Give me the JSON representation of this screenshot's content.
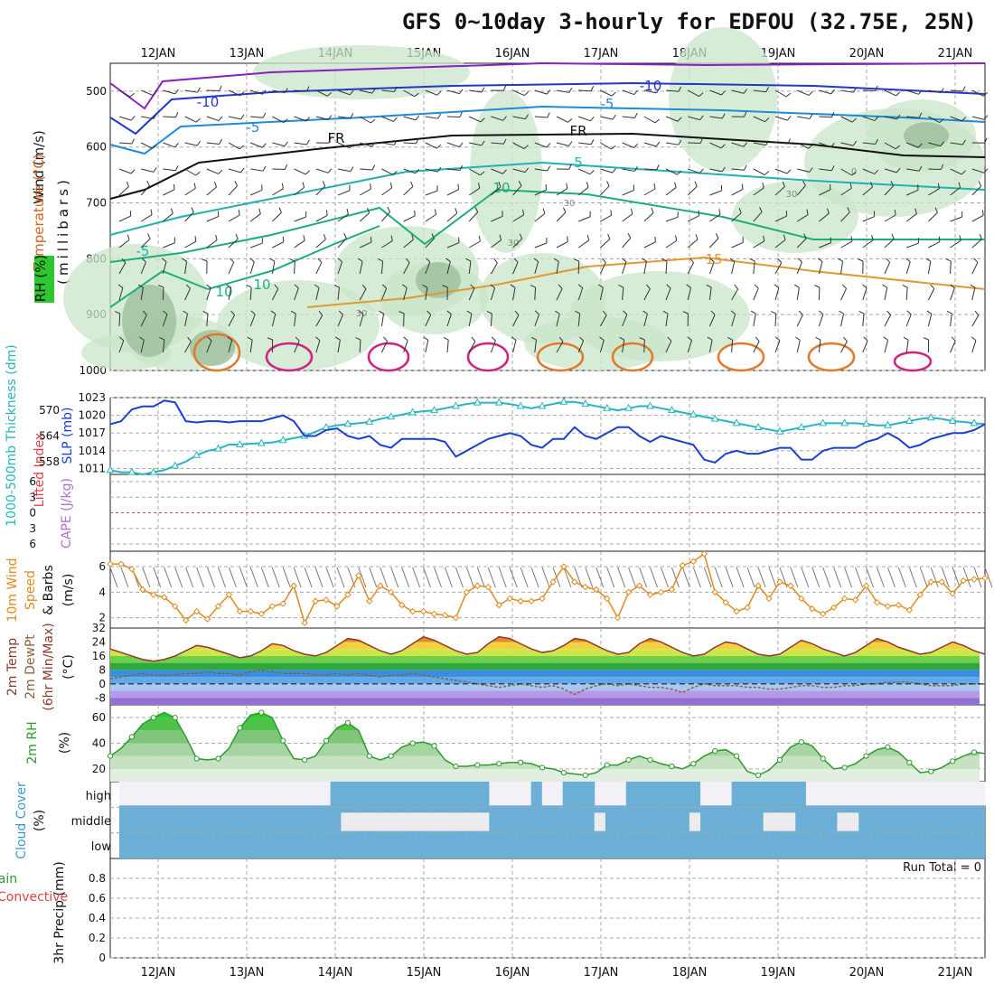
{
  "title": "GFS 0~10day 3-hourly for EDFOU (32.75E, 25N)",
  "dates": [
    "12JAN",
    "13JAN",
    "14JAN",
    "15JAN",
    "16JAN",
    "17JAN",
    "18JAN",
    "19JAN",
    "20JAN",
    "21JAN"
  ],
  "colors": {
    "rh_fill": "#c9e6c9",
    "slp": "#1a3fd0",
    "thickness": "#27b5c0",
    "wind10m": "#e08a1e",
    "temp_band": "#8c3a2a",
    "dewpt": "#8c6040",
    "rh2m": "#2e9a2e",
    "cloud": "#6baed6",
    "cloud_clear": "#f3f0f7",
    "li_zero": "#e04040"
  },
  "panels": {
    "upper": {
      "label_wind": "Wind (m/s)",
      "label_temp": "Temperature (°C)",
      "label_rh": "RH (%)",
      "label_unit": "(millibars)",
      "y_ticks": [
        500,
        600,
        700,
        800,
        900,
        1000
      ],
      "contour_labels": [
        "-10",
        "-10",
        "-5",
        "-5",
        "FR",
        "FR",
        "5",
        "10",
        "-5",
        "10",
        "15",
        "10",
        "30",
        "30",
        "30",
        "0",
        "30"
      ]
    },
    "slp": {
      "label_thick": "1000-500mb Thickness (dm)",
      "label_slp": "SLP (mb)",
      "y_left": [
        570,
        564,
        558
      ],
      "y_right": [
        1023,
        1020,
        1017,
        1014,
        1011
      ]
    },
    "cape": {
      "label_li": "Lifted Index",
      "label_cape": "CAPE (J/kg)",
      "y_ticks": [
        6,
        3,
        0,
        3,
        6
      ]
    },
    "wind10": {
      "label_title": "10m Wind",
      "label_speed": "Speed",
      "label_barbs": "& Barbs",
      "label_unit": "(m/s)",
      "y_ticks": [
        6,
        4,
        2
      ]
    },
    "temp2m": {
      "label_a": "2m Temp",
      "label_b": "2m DewPt",
      "label_c": "(6hr Min/Max)",
      "label_unit": "(°C)",
      "y_ticks": [
        32,
        24,
        16,
        8,
        0,
        -8
      ]
    },
    "rh2m": {
      "label_a": "2m RH",
      "label_unit": "(%)",
      "y_ticks": [
        60,
        40,
        20
      ]
    },
    "cloud": {
      "label_a": "Cloud Cover",
      "label_unit": "(%)",
      "levels": [
        "high",
        "middle",
        "low"
      ]
    },
    "precip": {
      "label_a": "3hr Precip (mm)",
      "label_total": "Total / Rain",
      "label_conv": "Convective",
      "run_total": "Run Total = 0",
      "y_ticks": [
        0.8,
        0.6,
        0.4,
        0.2,
        0
      ]
    }
  },
  "chart_data": [
    {
      "type": "line",
      "name": "slp",
      "ylim": [
        1010,
        1023
      ],
      "values": [
        1018.5,
        1019,
        1021,
        1021.5,
        1021.5,
        1022.5,
        1022.2,
        1019,
        1018.8,
        1019,
        1019,
        1018.8,
        1019,
        1019,
        1019,
        1019.5,
        1020,
        1019,
        1016.5,
        1016.5,
        1017.5,
        1017.8,
        1016.5,
        1016,
        1016.5,
        1015,
        1014.5,
        1016,
        1016,
        1016,
        1016,
        1015.5,
        1013,
        1014,
        1015,
        1016,
        1016.5,
        1017,
        1016.5,
        1015,
        1014.5,
        1016,
        1016,
        1018,
        1016.5,
        1016,
        1017,
        1018,
        1018,
        1016.5,
        1015.5,
        1016.5,
        1016,
        1015.5,
        1015,
        1012.5,
        1012,
        1013.5,
        1014,
        1013.5,
        1013.5,
        1014,
        1014.5,
        1014.5,
        1012.5,
        1012.5,
        1014,
        1014.5,
        1014.5,
        1014.5,
        1015.5,
        1016,
        1017,
        1016,
        1014.5,
        1015,
        1016,
        1016.5,
        1017,
        1017,
        1017.5,
        1018.5
      ]
    },
    {
      "type": "line",
      "name": "thickness",
      "ylim": [
        555,
        573
      ],
      "values": [
        556,
        555.5,
        555.5,
        555,
        555.5,
        556,
        557,
        558,
        559.5,
        560.5,
        561,
        562,
        562,
        562.2,
        562.3,
        562.5,
        563,
        563.5,
        564,
        565,
        566,
        566.5,
        566.8,
        567,
        567.3,
        568,
        568.5,
        569,
        569.5,
        569.8,
        570,
        570.5,
        571,
        571.5,
        571.8,
        571.8,
        571.8,
        571.5,
        571,
        570.5,
        571,
        571.5,
        572,
        572,
        571.5,
        571,
        570.5,
        570,
        570.5,
        571,
        571,
        570.5,
        570,
        569.5,
        569,
        568.5,
        568,
        567.5,
        567,
        566.5,
        566,
        565.5,
        565,
        565.5,
        566,
        566.5,
        567,
        567,
        567,
        567,
        566.8,
        566.5,
        566.5,
        567,
        567.5,
        568,
        568.3,
        568,
        567.5,
        567.3,
        567,
        566.8
      ]
    },
    {
      "type": "line",
      "name": "wind10m",
      "ylim": [
        1.2,
        7.2
      ],
      "values": [
        6.2,
        6.2,
        5.8,
        4.2,
        3.8,
        3.6,
        2.9,
        1.8,
        2.5,
        1.9,
        2.9,
        3.8,
        2.5,
        2.5,
        2.3,
        2.9,
        3.1,
        4.5,
        1.6,
        3.3,
        3.4,
        2.9,
        3.8,
        5.3,
        3.3,
        4.5,
        4.0,
        3.0,
        2.5,
        2.5,
        2.3,
        2.2,
        2.0,
        4.0,
        4.5,
        4.4,
        3.0,
        3.5,
        3.3,
        3.3,
        3.5,
        4.8,
        6.0,
        4.8,
        4.4,
        4.2,
        3.5,
        2.0,
        4.0,
        4.5,
        3.8,
        4.0,
        4.2,
        6.1,
        6.4,
        7.0,
        4.0,
        3.2,
        2.5,
        2.8,
        4.5,
        3.5,
        4.8,
        4.5,
        3.5,
        2.7,
        2.3,
        2.8,
        3.5,
        3.4,
        4.5,
        3.2,
        2.9,
        3.0,
        2.6,
        3.8,
        4.8,
        4.8,
        3.9,
        4.9,
        5.0,
        5.1
      ]
    },
    {
      "type": "area",
      "name": "temp2m",
      "ylim": [
        -12,
        32
      ],
      "values": [
        20,
        18,
        16,
        14,
        13,
        14,
        16,
        19,
        22,
        21,
        19,
        17,
        15,
        16,
        19,
        23,
        22,
        19,
        17,
        16,
        18,
        22,
        26,
        25,
        22,
        19,
        17,
        19,
        23,
        27,
        25,
        22,
        19,
        17,
        18,
        23,
        27,
        26,
        23,
        20,
        18,
        19,
        22,
        26,
        25,
        22,
        19,
        17,
        18,
        23,
        26,
        24,
        21,
        18,
        16,
        17,
        21,
        24,
        23,
        20,
        17,
        16,
        17,
        21,
        25,
        23,
        20,
        18,
        16,
        18,
        22,
        26,
        24,
        21,
        19,
        17,
        18,
        21,
        24,
        22,
        19,
        17
      ]
    },
    {
      "type": "line",
      "name": "dewpt2m",
      "ylim": [
        -12,
        32
      ],
      "values": [
        3,
        4,
        5,
        6,
        5,
        5,
        5,
        6,
        6,
        7,
        6,
        6,
        5,
        7,
        8,
        7,
        6,
        6,
        6,
        5,
        5,
        6,
        5,
        6,
        5,
        4,
        5,
        5,
        6,
        5,
        4,
        3,
        2,
        1,
        0,
        -1,
        -2,
        -1,
        0,
        -1,
        -2,
        -1,
        -3,
        -6,
        -3,
        -1,
        0,
        -1,
        0,
        -1,
        -2,
        -2,
        -3,
        -5,
        -2,
        0,
        -1,
        -1,
        -1,
        -2,
        -2,
        -3,
        -3,
        -2,
        -1,
        -1,
        -2,
        -2,
        -1,
        -1,
        0,
        0,
        1,
        1,
        1,
        0,
        -1,
        -1,
        -1,
        0,
        0,
        0
      ]
    },
    {
      "type": "area",
      "name": "rh2m",
      "ylim": [
        10,
        70
      ],
      "values": [
        30,
        36,
        45,
        55,
        60,
        64,
        60,
        45,
        28,
        27,
        28,
        36,
        52,
        62,
        64,
        60,
        42,
        28,
        27,
        30,
        42,
        52,
        56,
        50,
        30,
        27,
        30,
        37,
        40,
        41,
        38,
        27,
        22,
        22,
        23,
        23,
        24,
        25,
        25,
        24,
        21,
        20,
        17,
        16,
        15,
        17,
        23,
        23,
        27,
        30,
        27,
        24,
        22,
        20,
        24,
        30,
        34,
        35,
        30,
        18,
        15,
        19,
        27,
        37,
        41,
        38,
        28,
        20,
        21,
        24,
        30,
        35,
        37,
        33,
        25,
        17,
        18,
        21,
        26,
        30,
        33,
        32
      ]
    },
    {
      "type": "heatmap",
      "name": "cloud_cover_high",
      "ylim": [
        0,
        100
      ],
      "values": [
        0,
        0,
        0,
        0,
        0,
        0,
        0,
        0,
        0,
        0,
        0,
        0,
        0,
        0,
        0,
        0,
        0,
        0,
        0,
        0,
        1,
        1,
        1,
        1,
        1,
        1,
        1,
        1,
        1,
        1,
        1,
        1,
        1,
        1,
        1,
        0,
        0,
        0,
        0,
        1,
        0,
        0,
        1,
        1,
        1,
        0,
        0,
        0,
        1,
        1,
        1,
        1,
        1,
        1,
        1,
        0,
        0,
        0,
        1,
        1,
        1,
        1,
        1,
        1,
        1,
        0,
        0,
        0,
        0,
        0,
        0,
        0,
        0,
        0,
        0,
        0,
        0,
        0,
        0,
        0,
        0,
        0
      ]
    },
    {
      "type": "heatmap",
      "name": "cloud_cover_middle",
      "ylim": [
        0,
        100
      ],
      "values": [
        0,
        0,
        0,
        0,
        0,
        0,
        0,
        0,
        0,
        0,
        0,
        0,
        0,
        0,
        0,
        0,
        0,
        0,
        0,
        0,
        0,
        1,
        1,
        1,
        1,
        1,
        1,
        1,
        1,
        1,
        1,
        1,
        1,
        1,
        1,
        0,
        0,
        0,
        0,
        0,
        0,
        0,
        0,
        0,
        0,
        1,
        0,
        0,
        0,
        0,
        0,
        0,
        0,
        0,
        1,
        0,
        0,
        0,
        0,
        0,
        0,
        1,
        1,
        1,
        0,
        0,
        0,
        0,
        1,
        1,
        0,
        0,
        0,
        0,
        0,
        0,
        0,
        0,
        0,
        0,
        0,
        0
      ]
    },
    {
      "type": "bar",
      "name": "precip3hr",
      "ylim": [
        0,
        1.0
      ],
      "values": [
        0,
        0,
        0,
        0,
        0,
        0,
        0,
        0,
        0,
        0,
        0,
        0,
        0,
        0,
        0,
        0,
        0,
        0,
        0,
        0,
        0,
        0,
        0,
        0,
        0,
        0,
        0,
        0,
        0,
        0,
        0,
        0,
        0,
        0,
        0,
        0,
        0,
        0,
        0,
        0,
        0,
        0,
        0,
        0,
        0,
        0,
        0,
        0,
        0,
        0,
        0,
        0,
        0,
        0,
        0,
        0,
        0,
        0,
        0,
        0,
        0,
        0,
        0,
        0,
        0,
        0,
        0,
        0,
        0,
        0,
        0,
        0,
        0,
        0,
        0,
        0,
        0,
        0,
        0,
        0,
        0,
        0
      ]
    }
  ]
}
